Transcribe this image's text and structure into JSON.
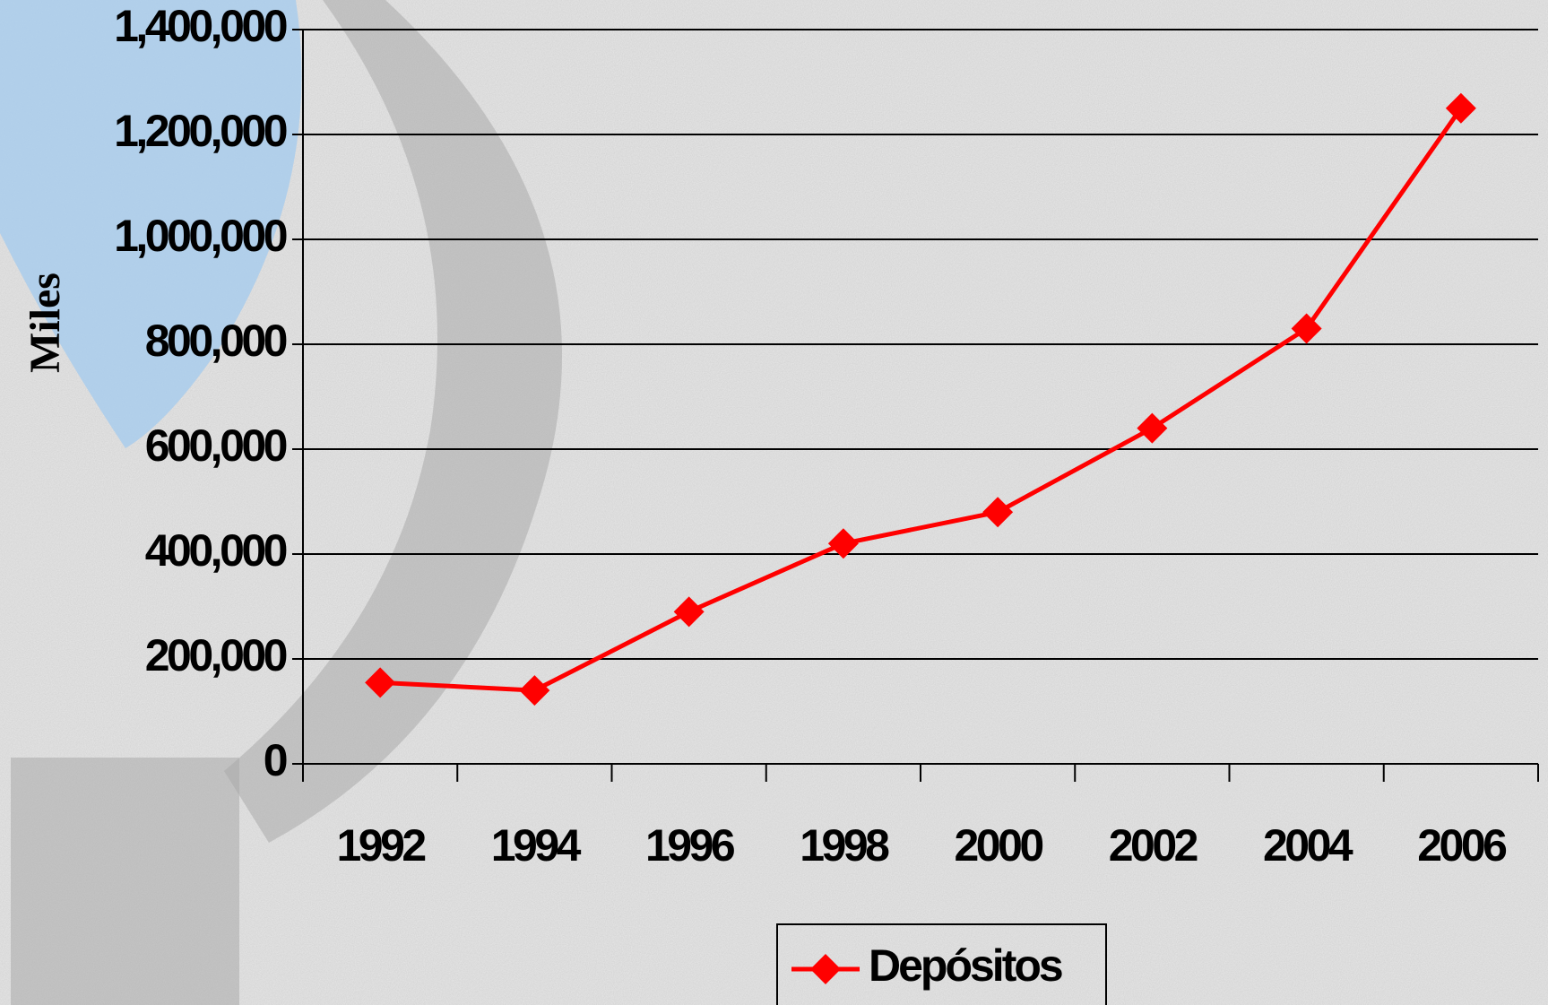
{
  "chart_data": {
    "type": "line",
    "y_label": "Miles",
    "categories": [
      "1992",
      "1994",
      "1996",
      "1998",
      "2000",
      "2002",
      "2004",
      "2006"
    ],
    "series": [
      {
        "name": "Depósitos",
        "color": "#ff0000",
        "values": [
          155000,
          140000,
          290000,
          420000,
          480000,
          640000,
          830000,
          1250000
        ]
      }
    ],
    "ylim": [
      0,
      1400000
    ],
    "yticks": [
      0,
      {
        "value": 200000,
        "label": "200,000"
      },
      {
        "value": 400000,
        "label": "400,000"
      },
      {
        "value": 600000,
        "label": "600,000"
      },
      {
        "value": 800000,
        "label": "800,000"
      },
      {
        "value": 1000000,
        "label": "1,000,000"
      },
      {
        "value": 1200000,
        "label": "1,200,000"
      },
      {
        "value": 1400000,
        "label": "1,400,000"
      }
    ],
    "grid": true,
    "legend": "bottom"
  }
}
